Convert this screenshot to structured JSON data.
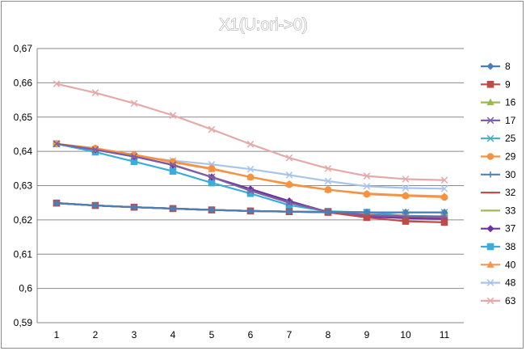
{
  "chart_data": {
    "type": "line",
    "title": "X1(U:ori->0)",
    "xlabel": "",
    "ylabel": "",
    "x": [
      1,
      2,
      3,
      4,
      5,
      6,
      7,
      8,
      9,
      10,
      11
    ],
    "x_tick_labels": [
      "1",
      "2",
      "3",
      "4",
      "5",
      "6",
      "7",
      "8",
      "9",
      "10",
      "11"
    ],
    "ylim": [
      0.59,
      0.67
    ],
    "y_ticks": [
      0.59,
      0.6,
      0.61,
      0.62,
      0.63,
      0.64,
      0.65,
      0.66,
      0.67
    ],
    "y_tick_labels": [
      "0,59",
      "0,6",
      "0,61",
      "0,62",
      "0,63",
      "0,64",
      "0,65",
      "0,66",
      "0,67"
    ],
    "grid": "horizontal",
    "legend_position": "right",
    "series": [
      {
        "name": "8",
        "color": "#4a7ebb",
        "marker": "diamond",
        "values": [
          0.6249,
          0.6242,
          0.6237,
          0.6233,
          0.6229,
          0.6226,
          0.6224,
          0.6223,
          0.6222,
          0.6222,
          0.6222
        ]
      },
      {
        "name": "9",
        "color": "#be4b48",
        "marker": "square",
        "values": [
          0.6249,
          0.6242,
          0.6237,
          0.6233,
          0.6229,
          0.6226,
          0.6224,
          0.6222,
          0.6207,
          0.6196,
          0.6193
        ]
      },
      {
        "name": "16",
        "color": "#98b954",
        "marker": "triangle",
        "values": [
          0.6249,
          0.6242,
          0.6237,
          0.6233,
          0.6229,
          0.6226,
          0.6224,
          0.6223,
          0.6222,
          0.6222,
          0.6222
        ]
      },
      {
        "name": "17",
        "color": "#7d60a0",
        "marker": "x",
        "values": [
          0.6422,
          0.6405,
          0.6385,
          0.6361,
          0.6325,
          0.6285,
          0.625,
          0.6224,
          0.6213,
          0.621,
          0.621
        ]
      },
      {
        "name": "25",
        "color": "#46aac5",
        "marker": "x",
        "values": [
          0.6249,
          0.6242,
          0.6237,
          0.6233,
          0.6229,
          0.6226,
          0.6224,
          0.6223,
          0.6222,
          0.6222,
          0.6222
        ]
      },
      {
        "name": "29",
        "color": "#f69240",
        "marker": "circle",
        "values": [
          0.6422,
          0.6409,
          0.639,
          0.637,
          0.635,
          0.6325,
          0.6303,
          0.6288,
          0.6275,
          0.627,
          0.6266
        ]
      },
      {
        "name": "30",
        "color": "#4f81bd",
        "marker": "plus",
        "values": [
          0.6249,
          0.6242,
          0.6237,
          0.6233,
          0.6229,
          0.6226,
          0.6224,
          0.6223,
          0.6222,
          0.6222,
          0.6222
        ]
      },
      {
        "name": "32",
        "color": "#c0504d",
        "marker": "line",
        "values": [
          0.6249,
          0.6242,
          0.6237,
          0.6233,
          0.6229,
          0.6226,
          0.6224,
          0.6222,
          0.6215,
          0.621,
          0.6207
        ]
      },
      {
        "name": "33",
        "color": "#9bbb59",
        "marker": "line",
        "values": [
          0.6249,
          0.6242,
          0.6237,
          0.6233,
          0.6229,
          0.6226,
          0.6224,
          0.6223,
          0.6222,
          0.6222,
          0.6222
        ]
      },
      {
        "name": "37",
        "color": "#7030a0",
        "marker": "diamond",
        "values": [
          0.6422,
          0.6405,
          0.6385,
          0.636,
          0.6325,
          0.629,
          0.6255,
          0.6223,
          0.621,
          0.6205,
          0.6203
        ]
      },
      {
        "name": "38",
        "color": "#3aaed8",
        "marker": "square",
        "values": [
          0.6422,
          0.6398,
          0.637,
          0.6342,
          0.6308,
          0.6277,
          0.6243,
          0.6225,
          0.6222,
          0.6212,
          0.621
        ]
      },
      {
        "name": "40",
        "color": "#f79646",
        "marker": "triangle",
        "values": [
          0.6422,
          0.6409,
          0.639,
          0.6368,
          0.6348,
          0.6325,
          0.6305,
          0.6288,
          0.6277,
          0.6272,
          0.6269
        ]
      },
      {
        "name": "48",
        "color": "#a9c4eb",
        "marker": "x",
        "values": [
          0.6422,
          0.6404,
          0.6385,
          0.6373,
          0.6362,
          0.6348,
          0.6331,
          0.6313,
          0.6298,
          0.6293,
          0.6291
        ]
      },
      {
        "name": "63",
        "color": "#e6a9a9",
        "marker": "x",
        "values": [
          0.6597,
          0.6571,
          0.654,
          0.6505,
          0.6464,
          0.6421,
          0.6381,
          0.635,
          0.6328,
          0.6319,
          0.6316
        ]
      }
    ]
  }
}
